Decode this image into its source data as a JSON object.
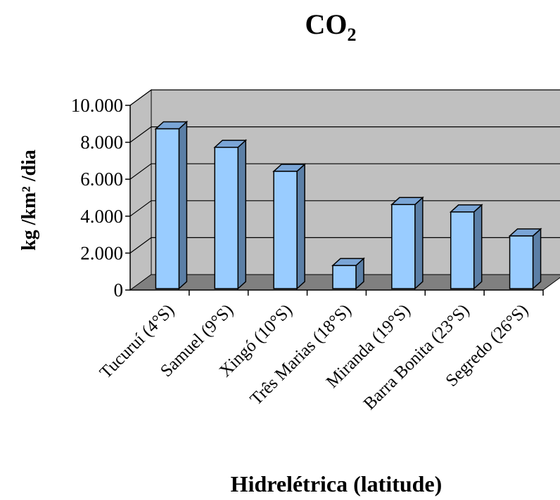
{
  "chart_data": {
    "type": "bar",
    "title": "CO",
    "title_subscript": "2",
    "ylabel": "kg /km² /dia",
    "xlabel": "Hidrelétrica (latitude)",
    "categories": [
      "Tucuruí (4°S)",
      "Samuel (9°S)",
      "Xingó (10°S)",
      "Três Marias (18°S)",
      "Miranda (19°S)",
      "Barra Bonita (23°S)",
      "Segredo (26°S)"
    ],
    "values": [
      8500,
      7500,
      6200,
      1100,
      4400,
      4000,
      2700
    ],
    "ylim": [
      0,
      10000
    ],
    "yticks": [
      0,
      2000,
      4000,
      6000,
      8000,
      10000
    ],
    "ytick_labels": [
      "0",
      "2.000",
      "4.000",
      "6.000",
      "8.000",
      "10.000"
    ],
    "grid": true,
    "legend": "none",
    "style": "3d-column",
    "colors": {
      "bar_front": "#99ccff",
      "bar_side": "#5b7fa6",
      "bar_top": "#7aa5d6",
      "back_wall": "#c0c0c0",
      "floor": "#808080"
    }
  }
}
